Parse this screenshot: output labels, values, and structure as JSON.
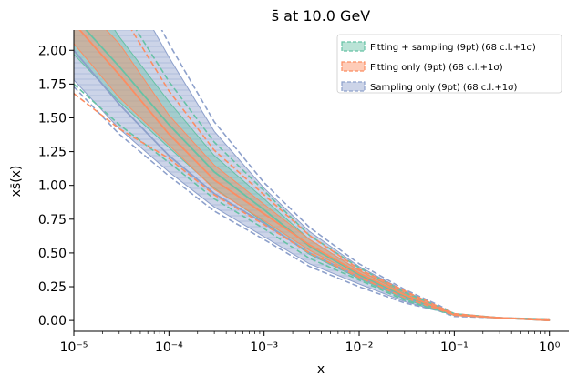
{
  "chart_data": {
    "type": "area",
    "title": "s̄ at 10.0 GeV",
    "xlabel": "x",
    "ylabel": "xs̄(x)",
    "xscale": "log",
    "xlim": [
      1e-05,
      1.6
    ],
    "ylim": [
      -0.08,
      2.15
    ],
    "grid": false,
    "legend_position": "top-right",
    "x_ticks": [
      {
        "value": 1e-05,
        "label": "10⁻⁵"
      },
      {
        "value": 0.0001,
        "label": "10⁻⁴"
      },
      {
        "value": 0.001,
        "label": "10⁻³"
      },
      {
        "value": 0.01,
        "label": "10⁻²"
      },
      {
        "value": 0.1,
        "label": "10⁻¹"
      },
      {
        "value": 1,
        "label": "10⁰"
      }
    ],
    "y_ticks": [
      {
        "value": 0.0,
        "label": "0.00"
      },
      {
        "value": 0.25,
        "label": "0.25"
      },
      {
        "value": 0.5,
        "label": "0.50"
      },
      {
        "value": 0.75,
        "label": "0.75"
      },
      {
        "value": 1.0,
        "label": "1.00"
      },
      {
        "value": 1.25,
        "label": "1.25"
      },
      {
        "value": 1.5,
        "label": "1.50"
      },
      {
        "value": 1.75,
        "label": "1.75"
      },
      {
        "value": 2.0,
        "label": "2.00"
      }
    ],
    "x": [
      1e-05,
      3e-05,
      0.0001,
      0.0003,
      0.001,
      0.003,
      0.01,
      0.03,
      0.07,
      0.1,
      0.3,
      1.0
    ],
    "series": [
      {
        "name": "Fitting + sampling (9pt) (68 c.l.+1σ)",
        "color": "#66c2a5",
        "center": [
          2.25,
          1.88,
          1.45,
          1.1,
          0.82,
          0.55,
          0.34,
          0.18,
          0.08,
          0.04,
          0.02,
          0.0
        ],
        "band_low": [
          1.97,
          1.62,
          1.28,
          0.98,
          0.73,
          0.49,
          0.31,
          0.16,
          0.07,
          0.04,
          0.02,
          0.0
        ],
        "band_high": [
          2.6,
          2.1,
          1.62,
          1.22,
          0.9,
          0.6,
          0.37,
          0.2,
          0.09,
          0.05,
          0.02,
          0.01
        ],
        "outer_low": [
          1.75,
          1.45,
          1.17,
          0.9,
          0.68,
          0.46,
          0.3,
          0.15,
          0.07,
          0.04,
          0.02,
          0.0
        ],
        "outer_high": [
          2.9,
          2.35,
          1.77,
          1.32,
          0.96,
          0.63,
          0.39,
          0.21,
          0.1,
          0.05,
          0.02,
          0.01
        ]
      },
      {
        "name": "Fitting only (9pt) (68 c.l.+1σ)",
        "color": "#fc8d62",
        "center": [
          2.2,
          1.82,
          1.38,
          1.04,
          0.79,
          0.56,
          0.35,
          0.19,
          0.09,
          0.04,
          0.02,
          0.0
        ],
        "band_low": [
          2.05,
          1.65,
          1.3,
          0.97,
          0.74,
          0.52,
          0.33,
          0.17,
          0.08,
          0.04,
          0.02,
          0.0
        ],
        "band_high": [
          2.4,
          2.05,
          1.52,
          1.15,
          0.86,
          0.6,
          0.37,
          0.21,
          0.1,
          0.05,
          0.02,
          0.01
        ],
        "outer_low": [
          1.68,
          1.42,
          1.2,
          0.93,
          0.71,
          0.5,
          0.32,
          0.17,
          0.08,
          0.04,
          0.02,
          0.0
        ],
        "outer_high": [
          2.85,
          2.3,
          1.7,
          1.26,
          0.93,
          0.63,
          0.38,
          0.22,
          0.1,
          0.05,
          0.02,
          0.01
        ]
      },
      {
        "name": "Sampling only (9pt) (68 c.l.+1σ)",
        "color": "#8da0cb",
        "center": [
          2.0,
          1.6,
          1.22,
          0.94,
          0.72,
          0.5,
          0.32,
          0.17,
          0.08,
          0.04,
          0.02,
          0.0
        ],
        "band_low": [
          1.78,
          1.42,
          1.1,
          0.84,
          0.62,
          0.42,
          0.27,
          0.14,
          0.07,
          0.04,
          0.02,
          0.0
        ],
        "band_high": [
          3.0,
          2.6,
          1.95,
          1.4,
          0.98,
          0.66,
          0.4,
          0.22,
          0.1,
          0.05,
          0.02,
          0.01
        ],
        "outer_low": [
          1.73,
          1.38,
          1.07,
          0.81,
          0.6,
          0.4,
          0.25,
          0.13,
          0.07,
          0.03,
          0.02,
          0.0
        ],
        "outer_high": [
          3.2,
          2.75,
          2.05,
          1.47,
          1.02,
          0.69,
          0.42,
          0.23,
          0.11,
          0.05,
          0.02,
          0.01
        ]
      }
    ]
  }
}
